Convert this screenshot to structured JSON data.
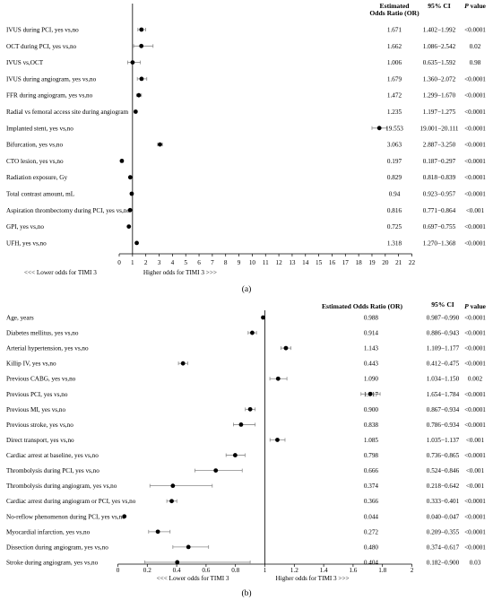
{
  "chart_data": [
    {
      "type": "forest",
      "caption": "(a)",
      "columns": {
        "estimate": "Estimated Odds Ratio (OR)",
        "ci": "95% CI",
        "p": "P value"
      },
      "x_ticks": [
        0,
        1,
        2,
        3,
        4,
        5,
        6,
        7,
        8,
        9,
        10,
        11,
        12,
        13,
        14,
        15,
        16,
        17,
        18,
        19,
        20,
        21,
        22
      ],
      "xlim": [
        0,
        22
      ],
      "reference_line": 1,
      "direction_left": "<<< Lower odds for TIMI 3",
      "direction_right": "Higher odds for TIMI 3 >>>",
      "rows": [
        {
          "label": "IVUS during PCI, yes vs,no",
          "or": 1.671,
          "lo": 1.402,
          "hi": 1.992,
          "or_text": "1.671",
          "ci_text": "1.402−1.992",
          "p_text": "<0.0001"
        },
        {
          "label": "OCT during PCI, yes vs,no",
          "or": 1.662,
          "lo": 1.086,
          "hi": 2.542,
          "or_text": "1.662",
          "ci_text": "1.086−2.542",
          "p_text": "0.02"
        },
        {
          "label": "IVUS vs,OCT",
          "or": 1.006,
          "lo": 0.635,
          "hi": 1.592,
          "or_text": "1.006",
          "ci_text": "0.635−1.592",
          "p_text": "0.98"
        },
        {
          "label": "IVUS during angiogram, yes vs,no",
          "or": 1.679,
          "lo": 1.36,
          "hi": 2.072,
          "or_text": "1.679",
          "ci_text": "1.360−2.072",
          "p_text": "<0.0001"
        },
        {
          "label": "FFR during angiogram, yes vs,no",
          "or": 1.472,
          "lo": 1.299,
          "hi": 1.67,
          "or_text": "1.472",
          "ci_text": "1.299−1.670",
          "p_text": "<0.0001"
        },
        {
          "label": "Radial vs femoral access site during angiogram",
          "or": 1.235,
          "lo": 1.197,
          "hi": 1.275,
          "or_text": "1.235",
          "ci_text": "1.197−1.275",
          "p_text": "<0.0001"
        },
        {
          "label": "Implanted stent, yes vs,no",
          "or": 19.553,
          "lo": 19.001,
          "hi": 20.111,
          "or_text": "19.553",
          "ci_text": "19.001−20.111",
          "p_text": "<0.0001"
        },
        {
          "label": "Bifurcation, yes vs,no",
          "or": 3.063,
          "lo": 2.887,
          "hi": 3.25,
          "or_text": "3.063",
          "ci_text": "2.887−3.250",
          "p_text": "<0.0001"
        },
        {
          "label": "CTO lesion, yes vs,no",
          "or": 0.197,
          "lo": 0.187,
          "hi": 0.297,
          "or_text": "0.197",
          "ci_text": "0.187−0.297",
          "p_text": "<0.0001"
        },
        {
          "label": "Radiation exposure, Gy",
          "or": 0.829,
          "lo": 0.818,
          "hi": 0.839,
          "or_text": "0.829",
          "ci_text": "0.818−0.839",
          "p_text": "<0.0001"
        },
        {
          "label": "Total contrast amount, mL",
          "or": 0.94,
          "lo": 0.923,
          "hi": 0.957,
          "or_text": "0.94",
          "ci_text": "0.923−0.957",
          "p_text": "<0.0001"
        },
        {
          "label": "Aspiration thrombectomy during PCI, yes vs,no",
          "or": 0.816,
          "lo": 0.771,
          "hi": 0.864,
          "or_text": "0.816",
          "ci_text": "0.771−0.864",
          "p_text": "<0.001"
        },
        {
          "label": "GPI, yes vs,no",
          "or": 0.725,
          "lo": 0.697,
          "hi": 0.755,
          "or_text": "0.725",
          "ci_text": "0.697−0.755",
          "p_text": "<0.0001"
        },
        {
          "label": "UFH, yes vs,no",
          "or": 1.318,
          "lo": 1.27,
          "hi": 1.368,
          "or_text": "1.318",
          "ci_text": "1.270−1.368",
          "p_text": "<0.0001"
        }
      ]
    },
    {
      "type": "forest",
      "caption": "(b)",
      "columns": {
        "estimate": "Estimated Odds Ratio (OR)",
        "ci": "95% CI",
        "p": "P value"
      },
      "x_ticks": [
        0,
        0.2,
        0.4,
        0.6,
        0.8,
        1,
        1.2,
        1.4,
        1.6,
        1.8,
        2
      ],
      "x_tick_labels": [
        "0",
        "0.2",
        "0.4",
        "0.6",
        "0.8",
        "1",
        "1.2",
        "1.4",
        "1.6",
        "1.8",
        "2"
      ],
      "xlim": [
        0,
        2
      ],
      "reference_line": 1,
      "direction_left": "<<< Lower odds for TIMI 3",
      "direction_right": "Higher odds for TIMI 3 >>>",
      "rows": [
        {
          "label": "Age, years",
          "or": 0.988,
          "lo": 0.987,
          "hi": 0.99,
          "or_text": "0.988",
          "ci_text": "0.987−0.990",
          "p_text": "<0.0001"
        },
        {
          "label": "Diabetes mellitus, yes vs,no",
          "or": 0.914,
          "lo": 0.886,
          "hi": 0.943,
          "or_text": "0.914",
          "ci_text": "0.886−0.943",
          "p_text": "<0.0001"
        },
        {
          "label": "Arterial hypertension, yes vs,no",
          "or": 1.143,
          "lo": 1.109,
          "hi": 1.177,
          "or_text": "1.143",
          "ci_text": "1.109−1.177",
          "p_text": "<0.0001"
        },
        {
          "label": "Killip IV, yes vs,no",
          "or": 0.443,
          "lo": 0.412,
          "hi": 0.475,
          "or_text": "0.443",
          "ci_text": "0.412−0.475",
          "p_text": "<0.0001"
        },
        {
          "label": "Previous CABG, yes vs,no",
          "or": 1.09,
          "lo": 1.034,
          "hi": 1.15,
          "or_text": "1.090",
          "ci_text": "1.034−1.150",
          "p_text": "0.002"
        },
        {
          "label": "Previous PCI, yes vs,no",
          "or": 1.717,
          "lo": 1.654,
          "hi": 1.784,
          "or_text": "1.717",
          "ci_text": "1.654−1.784",
          "p_text": "<0.0001"
        },
        {
          "label": "Previous MI, yes vs,no",
          "or": 0.9,
          "lo": 0.867,
          "hi": 0.934,
          "or_text": "0.900",
          "ci_text": "0.867−0.934",
          "p_text": "<0.0001"
        },
        {
          "label": "Previous stroke, yes vs,no",
          "or": 0.838,
          "lo": 0.786,
          "hi": 0.934,
          "or_text": "0.838",
          "ci_text": "0.786−0.934",
          "p_text": "<0.0001"
        },
        {
          "label": "Direct transport, yes vs,no",
          "or": 1.085,
          "lo": 1.035,
          "hi": 1.137,
          "or_text": "1.085",
          "ci_text": "1.035−1.137",
          "p_text": "<0.001"
        },
        {
          "label": "Cardiac arrest at baseline, yes vs,no",
          "or": 0.798,
          "lo": 0.736,
          "hi": 0.865,
          "or_text": "0.798",
          "ci_text": "0.736−0.865",
          "p_text": "<0.0001"
        },
        {
          "label": "Thrombolysis during PCI, yes vs,no",
          "or": 0.666,
          "lo": 0.524,
          "hi": 0.846,
          "or_text": "0.666",
          "ci_text": "0.524−0.846",
          "p_text": "<0.001"
        },
        {
          "label": "Thrombolysis during angiogram, yes vs,no",
          "or": 0.374,
          "lo": 0.218,
          "hi": 0.642,
          "or_text": "0.374",
          "ci_text": "0.218−0.642",
          "p_text": "<0.001"
        },
        {
          "label": "Cardiac arrest during angiogram or PCI, yes vs,no",
          "or": 0.366,
          "lo": 0.333,
          "hi": 0.401,
          "or_text": "0.366",
          "ci_text": "0.333−0.401",
          "p_text": "<0.0001"
        },
        {
          "label": "No-reflow phenomenon during PCI, yes vs,no",
          "or": 0.044,
          "lo": 0.04,
          "hi": 0.047,
          "or_text": "0.044",
          "ci_text": "0.040−0.047",
          "p_text": "<0.0001"
        },
        {
          "label": "Myocardial infarction, yes vs,no",
          "or": 0.272,
          "lo": 0.209,
          "hi": 0.355,
          "or_text": "0.272",
          "ci_text": "0.209−0.355",
          "p_text": "<0.0001"
        },
        {
          "label": "Dissection during angiogram, yes vs,no",
          "or": 0.48,
          "lo": 0.374,
          "hi": 0.617,
          "or_text": "0.480",
          "ci_text": "0.374−0.617",
          "p_text": "<0.0001"
        },
        {
          "label": "Stroke during angiogram, yes vs,no",
          "or": 0.404,
          "lo": 0.182,
          "hi": 0.9,
          "or_text": "0.404",
          "ci_text": "0.182−0.900",
          "p_text": "0.03"
        }
      ]
    }
  ]
}
